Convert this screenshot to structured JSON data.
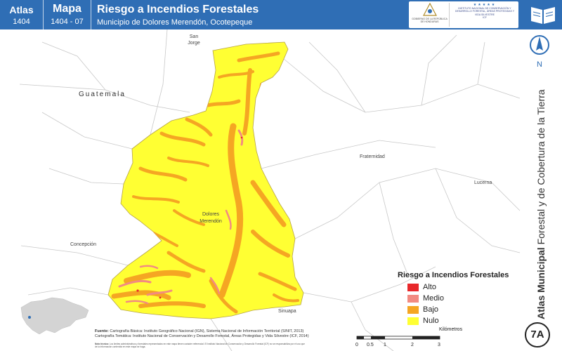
{
  "header": {
    "atlas_label": "Atlas",
    "atlas_number": "1404",
    "mapa_label": "Mapa",
    "mapa_number": "1404 - 07",
    "title": "Riesgo a Incendios Forestales",
    "subtitle": "Municipio de Dolores Merendón, Ocotepeque",
    "logo_left_text": "GOBIERNO DE LA REPÚBLICA DE HONDURAS",
    "logo_right_text": "INSTITUTO NACIONAL DE CONSERVACIÓN Y DESARROLLO FORESTAL, ÁREAS PROTEGIDAS Y VIDA SILVESTRE",
    "logo_right_abbr": "ICF"
  },
  "sidebar": {
    "north_label": "N",
    "vertical_title_bold": "Atlas Municipal",
    "vertical_title_rest": " Forestal y de Cobertura de la Tierra",
    "badge": "7A"
  },
  "map": {
    "place_labels": {
      "san_jorge_1": "San",
      "san_jorge_2": "Jorge",
      "guatemala": "Guatemala",
      "fraternidad": "Fraternidad",
      "lucerna": "Lucerna",
      "dolores_1": "Dolores",
      "dolores_2": "Merendón",
      "concepcion": "Concepción",
      "sinuapa": "Sinuapa"
    },
    "colors": {
      "alto": "#e8282b",
      "medio": "#f28b82",
      "bajo": "#f5a623",
      "nulo": "#ffff33"
    }
  },
  "legend": {
    "title": "Riesgo a Incendios Forestales",
    "items": [
      {
        "label": "Alto",
        "color": "#e8282b"
      },
      {
        "label": "Medio",
        "color": "#f28b82"
      },
      {
        "label": "Bajo",
        "color": "#f5a623"
      },
      {
        "label": "Nulo",
        "color": "#ffff33"
      }
    ]
  },
  "sources": {
    "fuente_label": "Fuente:",
    "line1": "Cartografía Básica: Instituto Geográfico Nacional (IGN), Sistema Nacional de Información Territorial (SINIT, 2013)",
    "line2": "Cartografía Temática: Instituto Nacional de Conservación y Desarrollo Forestal, Áreas Protegidas y Vida Silvestre (ICF, 2014)",
    "nota_label": "Nota técnica:",
    "nota": "Los límites administrativos y forestales representados en este mapa tienen carácter referencial. El Instituto Nacional de Conservación y Desarrollo Forestal (ICF) no se responsabiliza por el uso que de la información contenida en este mapa se haga."
  },
  "scale": {
    "units": "Kilómetros",
    "ticks": [
      "0",
      "0.5",
      "1",
      "2",
      "3"
    ]
  }
}
